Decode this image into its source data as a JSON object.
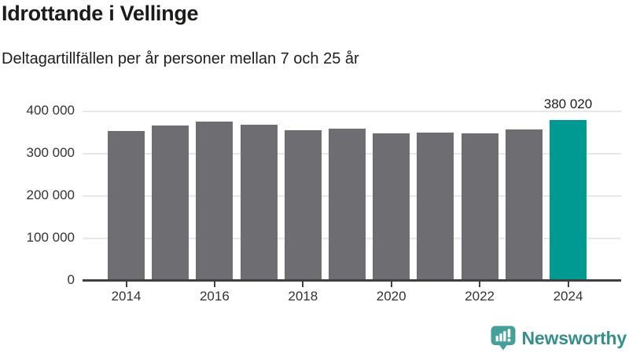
{
  "chart_data": {
    "type": "bar",
    "title": "Idrottande i Vellinge",
    "subtitle": "Deltagartillfällen per år personer mellan 7 och 25 år",
    "categories": [
      "2014",
      "2015",
      "2016",
      "2017",
      "2018",
      "2019",
      "2020",
      "2021",
      "2022",
      "2023",
      "2024"
    ],
    "values": [
      353000,
      367000,
      375000,
      368000,
      355000,
      359000,
      349000,
      350000,
      349000,
      357000,
      380020
    ],
    "highlight_index": 10,
    "highlight_value_label": "380 020",
    "ylim": [
      0,
      400000
    ],
    "ytick_labels": [
      "0",
      "100 000",
      "200 000",
      "300 000",
      "400 000"
    ],
    "xtick_labels": [
      "2014",
      "2016",
      "2018",
      "2020",
      "2022",
      "2024"
    ],
    "grid": true,
    "legend": "none",
    "colors": {
      "bar": "#6d6d72",
      "highlight": "#009a93",
      "gridline": "#e8e8e8",
      "axis": "#404040"
    }
  },
  "footer": {
    "brand_name": "Newsworthy",
    "brand_color": "#358f8a",
    "icon": "newsworthy-chart-bubble-icon",
    "icon_color": "#46a09a"
  }
}
